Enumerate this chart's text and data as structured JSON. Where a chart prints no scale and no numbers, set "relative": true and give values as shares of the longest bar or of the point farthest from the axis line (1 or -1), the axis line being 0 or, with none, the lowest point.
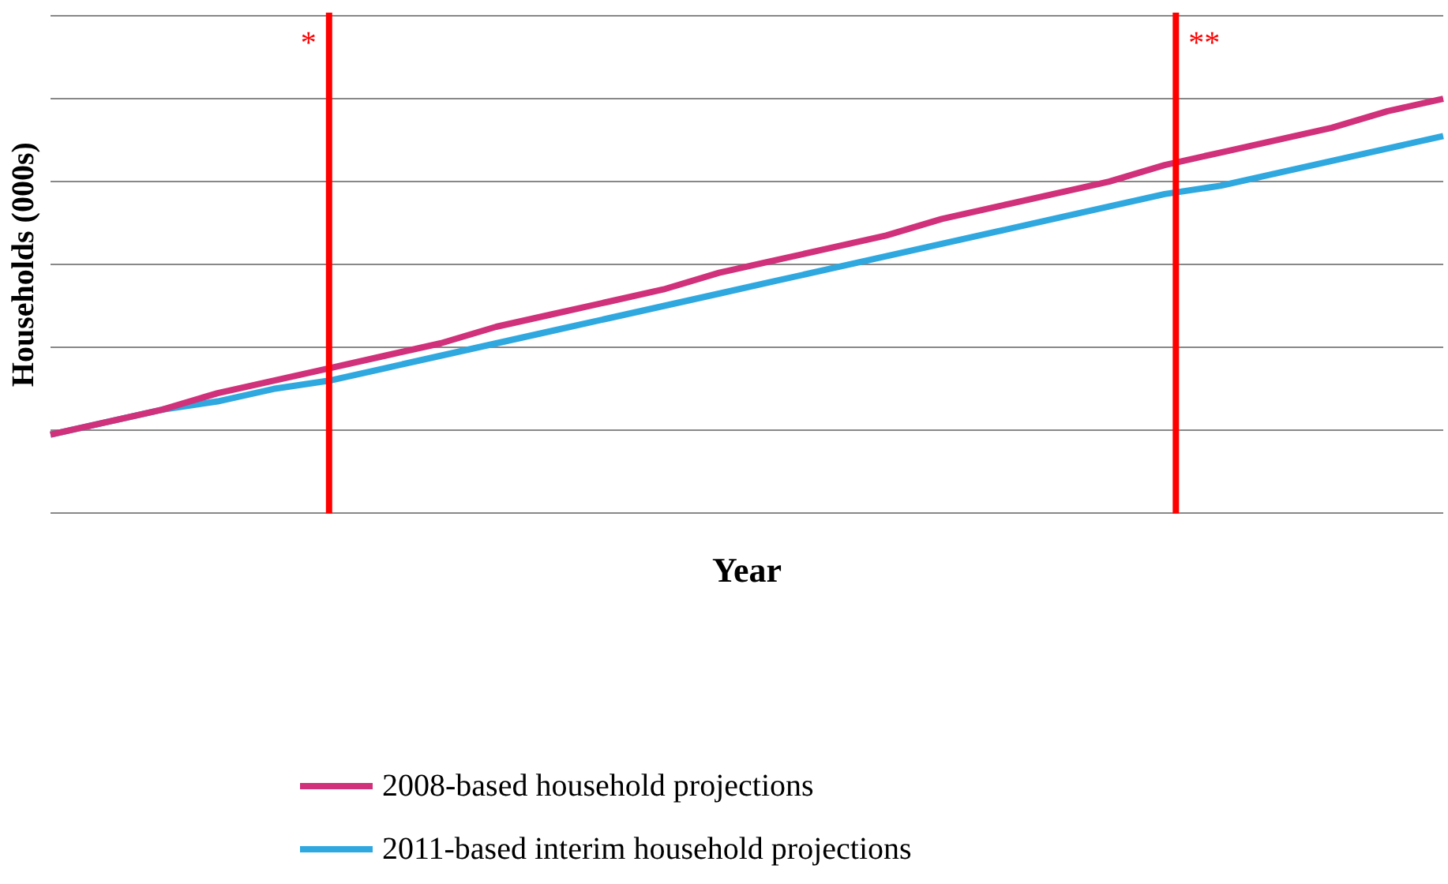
{
  "chart_data": {
    "type": "line",
    "xlabel": "Year",
    "ylabel": "Households (000s)",
    "relative": true,
    "grid": "y",
    "legend": "bottom",
    "marker": "none",
    "line_style": "solid",
    "categories": [
      null,
      null,
      null,
      null,
      null,
      null,
      null,
      null,
      null,
      null,
      null,
      null,
      null,
      null,
      null,
      null,
      null,
      null,
      null,
      null,
      null,
      null,
      null,
      null,
      null,
      null
    ],
    "series": [
      {
        "name": "2008-based household projections",
        "color": "#d0317a",
        "values": [
          0.19,
          0.22,
          0.25,
          0.29,
          0.32,
          0.35,
          0.38,
          0.41,
          0.45,
          0.48,
          0.51,
          0.54,
          0.58,
          0.61,
          0.64,
          0.67,
          0.71,
          0.74,
          0.77,
          0.8,
          0.84,
          0.87,
          0.9,
          0.93,
          0.97,
          1
        ]
      },
      {
        "name": "2011-based interim household projections",
        "color": "#2fa8e0",
        "values": [
          0.19,
          0.22,
          0.25,
          0.27,
          0.3,
          0.32,
          0.35,
          0.38,
          0.41,
          0.44,
          0.47,
          0.5,
          0.53,
          0.56,
          0.59,
          0.62,
          0.65,
          0.68,
          0.71,
          0.74,
          0.77,
          0.79,
          0.82,
          0.85,
          0.88,
          0.91
        ]
      }
    ],
    "annotations": [
      "*",
      "**"
    ]
  }
}
